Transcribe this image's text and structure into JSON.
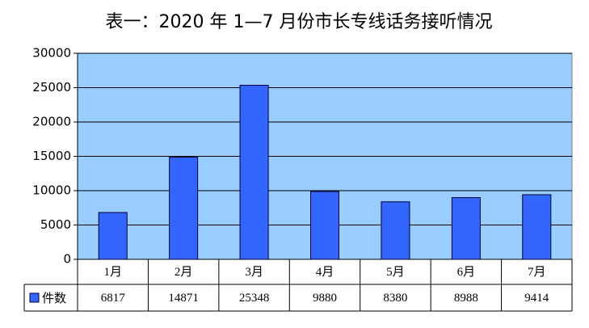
{
  "chart_data": {
    "type": "bar",
    "title": "表一：2020 年 1—7 月份市长专线话务接听情况",
    "categories": [
      "1月",
      "2月",
      "3月",
      "4月",
      "5月",
      "6月",
      "7月"
    ],
    "series": [
      {
        "name": "件数",
        "color": "#3366ff",
        "values": [
          6817,
          14871,
          25348,
          9880,
          8380,
          8988,
          9414
        ]
      }
    ],
    "ylim": [
      0,
      30000
    ],
    "yticks": [
      0,
      5000,
      10000,
      15000,
      20000,
      25000,
      30000
    ],
    "grid": true,
    "background": "#99ccff"
  }
}
